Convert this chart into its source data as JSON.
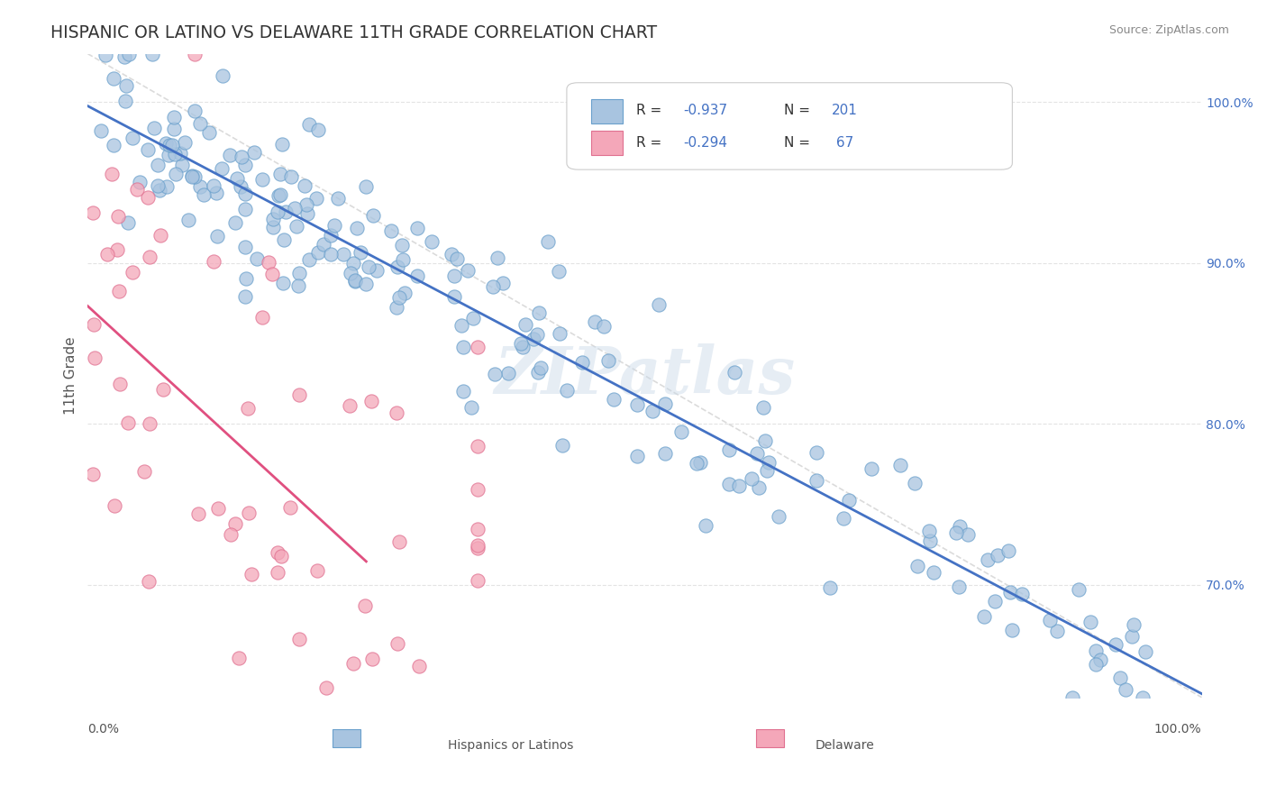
{
  "title": "HISPANIC OR LATINO VS DELAWARE 11TH GRADE CORRELATION CHART",
  "source_text": "Source: ZipAtlas.com",
  "ylabel": "11th Grade",
  "watermark": "ZIPatlas",
  "blue_R": -0.937,
  "blue_N": 201,
  "pink_R": -0.294,
  "pink_N": 67,
  "blue_color": "#a8c4e0",
  "blue_line_color": "#4472c4",
  "pink_color": "#f4a7b9",
  "pink_line_color": "#e05080",
  "blue_marker_edge": "#6aa0cc",
  "pink_marker_edge": "#e07090",
  "legend_R_color": "#4472c4",
  "legend_N_color": "#4472c4",
  "diag_color": "#cccccc",
  "grid_color": "#dddddd",
  "title_color": "#333333",
  "axis_label_color": "#555555",
  "right_tick_color": "#4472c4",
  "background_color": "#ffffff"
}
